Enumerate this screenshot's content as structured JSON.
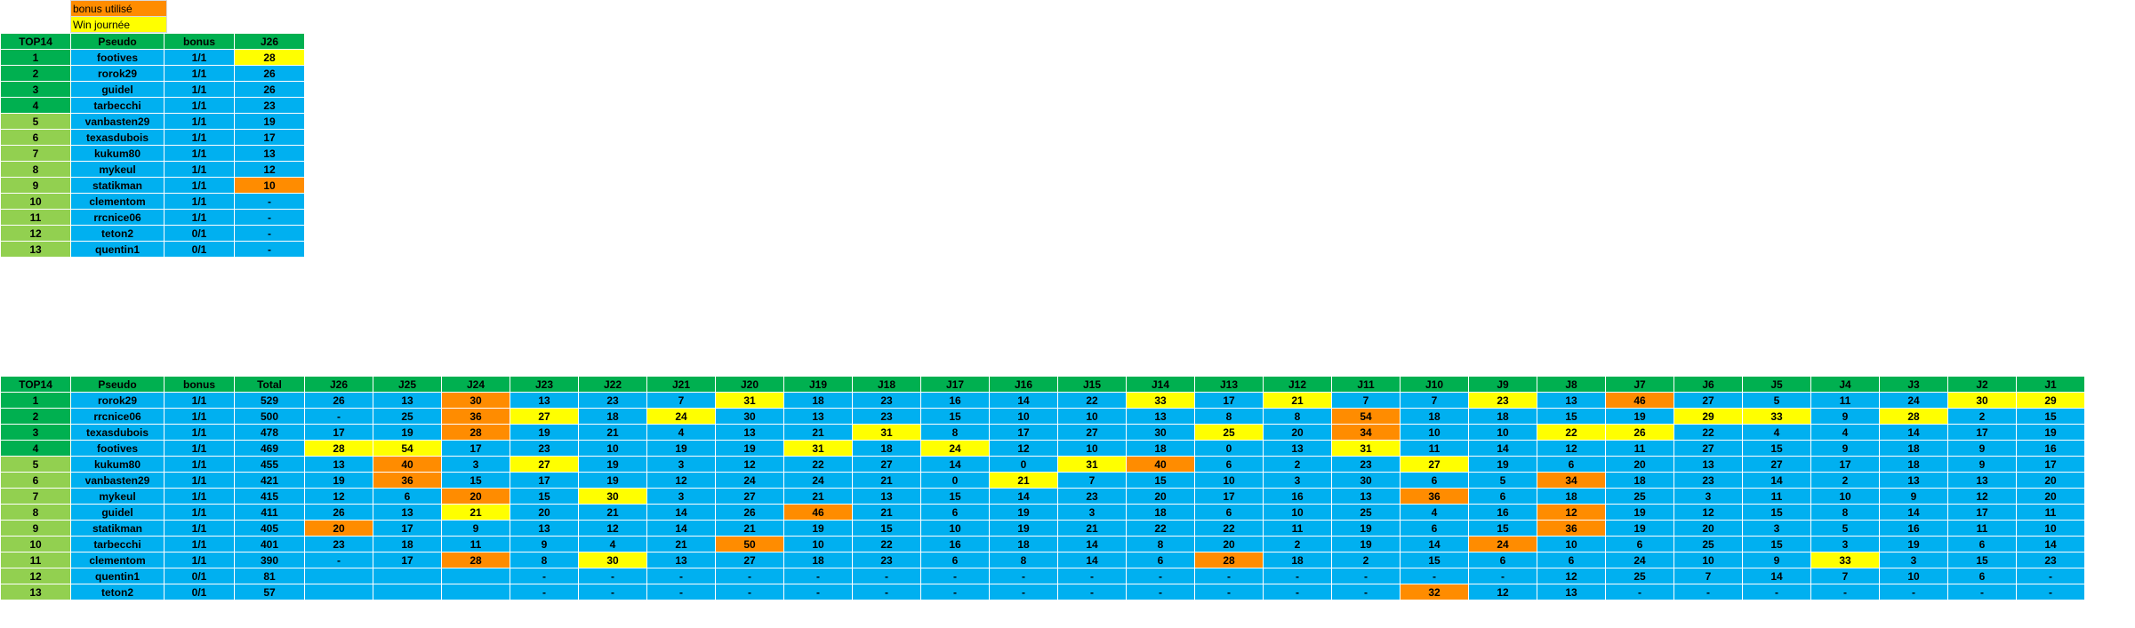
{
  "legend": [
    {
      "label": "bonus utilisé",
      "color": "#ff8c00"
    },
    {
      "label": "Win journée",
      "color": "#ffff00"
    }
  ],
  "colors": {
    "header": "#00b050",
    "rank_top": "#00b050",
    "rank_low": "#92d050",
    "cell": "#00b0f0",
    "bonus": "#ff8c00",
    "win": "#ffff00"
  },
  "small_table": {
    "headers": [
      "TOP14",
      "Pseudo",
      "bonus",
      "J26"
    ],
    "rows": [
      {
        "rank": "1",
        "pseudo": "footives",
        "bonus": "1/1",
        "j26": "28",
        "mark": "w"
      },
      {
        "rank": "2",
        "pseudo": "rorok29",
        "bonus": "1/1",
        "j26": "26",
        "mark": ""
      },
      {
        "rank": "3",
        "pseudo": "guidel",
        "bonus": "1/1",
        "j26": "26",
        "mark": ""
      },
      {
        "rank": "4",
        "pseudo": "tarbecchi",
        "bonus": "1/1",
        "j26": "23",
        "mark": ""
      },
      {
        "rank": "5",
        "pseudo": "vanbasten29",
        "bonus": "1/1",
        "j26": "19",
        "mark": ""
      },
      {
        "rank": "6",
        "pseudo": "texasdubois",
        "bonus": "1/1",
        "j26": "17",
        "mark": ""
      },
      {
        "rank": "7",
        "pseudo": "kukum80",
        "bonus": "1/1",
        "j26": "13",
        "mark": ""
      },
      {
        "rank": "8",
        "pseudo": "mykeul",
        "bonus": "1/1",
        "j26": "12",
        "mark": ""
      },
      {
        "rank": "9",
        "pseudo": "statikman",
        "bonus": "1/1",
        "j26": "10",
        "mark": "b"
      },
      {
        "rank": "10",
        "pseudo": "clementom",
        "bonus": "1/1",
        "j26": "-",
        "mark": ""
      },
      {
        "rank": "11",
        "pseudo": "rrcnice06",
        "bonus": "1/1",
        "j26": "-",
        "mark": ""
      },
      {
        "rank": "12",
        "pseudo": "teton2",
        "bonus": "0/1",
        "j26": "-",
        "mark": ""
      },
      {
        "rank": "13",
        "pseudo": "quentin1",
        "bonus": "0/1",
        "j26": "-",
        "mark": ""
      }
    ]
  },
  "big_table": {
    "headers": [
      "TOP14",
      "Pseudo",
      "bonus",
      "Total",
      "J26",
      "J25",
      "J24",
      "J23",
      "J22",
      "J21",
      "J20",
      "J19",
      "J18",
      "J17",
      "J16",
      "J15",
      "J14",
      "J13",
      "J12",
      "J11",
      "J10",
      "J9",
      "J8",
      "J7",
      "J6",
      "J5",
      "J4",
      "J3",
      "J2",
      "J1"
    ],
    "rows": [
      {
        "rank": "1",
        "pseudo": "rorok29",
        "bonus": "1/1",
        "total": "529",
        "scores": [
          "26",
          "13",
          "30",
          "13",
          "23",
          "7",
          "31",
          "18",
          "23",
          "16",
          "14",
          "22",
          "33",
          "17",
          "21",
          "7",
          "7",
          "23",
          "13",
          "46",
          "27",
          "5",
          "11",
          "24",
          "30",
          "29"
        ],
        "marks": [
          "",
          "",
          "b",
          "",
          "",
          "",
          "w",
          "",
          "",
          "",
          "",
          "",
          "w",
          "",
          "w",
          "",
          "",
          "w",
          "",
          "b",
          "",
          "",
          "",
          "",
          "w",
          "w"
        ]
      },
      {
        "rank": "2",
        "pseudo": "rrcnice06",
        "bonus": "1/1",
        "total": "500",
        "scores": [
          "-",
          "25",
          "36",
          "27",
          "18",
          "24",
          "30",
          "13",
          "23",
          "15",
          "10",
          "10",
          "13",
          "8",
          "8",
          "54",
          "18",
          "18",
          "15",
          "19",
          "29",
          "33",
          "9",
          "28",
          "2",
          "15"
        ],
        "marks": [
          "",
          "",
          "b",
          "w",
          "",
          "w",
          "",
          "",
          "",
          "",
          "",
          "",
          "",
          "",
          "",
          "b",
          "",
          "",
          "",
          "",
          "w",
          "w",
          "",
          "w",
          "",
          ""
        ]
      },
      {
        "rank": "3",
        "pseudo": "texasdubois",
        "bonus": "1/1",
        "total": "478",
        "scores": [
          "17",
          "19",
          "28",
          "19",
          "21",
          "4",
          "13",
          "21",
          "31",
          "8",
          "17",
          "27",
          "30",
          "25",
          "20",
          "34",
          "10",
          "10",
          "22",
          "26",
          "22",
          "4",
          "4",
          "14",
          "17",
          "19"
        ],
        "marks": [
          "",
          "",
          "b",
          "",
          "",
          "",
          "",
          "",
          "w",
          "",
          "",
          "",
          "",
          "w",
          "",
          "b",
          "",
          "",
          "w",
          "w",
          "",
          "",
          "",
          "",
          "",
          ""
        ]
      },
      {
        "rank": "4",
        "pseudo": "footives",
        "bonus": "1/1",
        "total": "469",
        "scores": [
          "28",
          "54",
          "17",
          "23",
          "10",
          "19",
          "19",
          "31",
          "18",
          "24",
          "12",
          "10",
          "18",
          "0",
          "13",
          "31",
          "11",
          "14",
          "12",
          "11",
          "27",
          "15",
          "9",
          "18",
          "9",
          "16"
        ],
        "marks": [
          "w",
          "w",
          "",
          "",
          "",
          "",
          "",
          "w",
          "",
          "w",
          "",
          "",
          "",
          "",
          "",
          "w",
          "",
          "",
          "",
          "",
          "",
          "",
          "",
          "",
          "",
          ""
        ]
      },
      {
        "rank": "5",
        "pseudo": "kukum80",
        "bonus": "1/1",
        "total": "455",
        "scores": [
          "13",
          "40",
          "3",
          "27",
          "19",
          "3",
          "12",
          "22",
          "27",
          "14",
          "0",
          "31",
          "40",
          "6",
          "2",
          "23",
          "27",
          "19",
          "6",
          "20",
          "13",
          "27",
          "17",
          "18",
          "9",
          "17"
        ],
        "marks": [
          "",
          "b",
          "",
          "w",
          "",
          "",
          "",
          "",
          "",
          "",
          "",
          "w",
          "b",
          "",
          "",
          "",
          "w",
          "",
          "",
          "",
          "",
          "",
          "",
          "",
          "",
          ""
        ]
      },
      {
        "rank": "6",
        "pseudo": "vanbasten29",
        "bonus": "1/1",
        "total": "421",
        "scores": [
          "19",
          "36",
          "15",
          "17",
          "19",
          "12",
          "24",
          "24",
          "21",
          "0",
          "21",
          "7",
          "15",
          "10",
          "3",
          "30",
          "6",
          "5",
          "34",
          "18",
          "23",
          "14",
          "2",
          "13",
          "13",
          "20"
        ],
        "marks": [
          "",
          "b",
          "",
          "",
          "",
          "",
          "",
          "",
          "",
          "",
          "w",
          "",
          "",
          "",
          "",
          "",
          "",
          "",
          "b",
          "",
          "",
          "",
          "",
          "",
          "",
          ""
        ]
      },
      {
        "rank": "7",
        "pseudo": "mykeul",
        "bonus": "1/1",
        "total": "415",
        "scores": [
          "12",
          "6",
          "20",
          "15",
          "30",
          "3",
          "27",
          "21",
          "13",
          "15",
          "14",
          "23",
          "20",
          "17",
          "16",
          "13",
          "36",
          "6",
          "18",
          "25",
          "3",
          "11",
          "10",
          "9",
          "12",
          "20"
        ],
        "marks": [
          "",
          "",
          "b",
          "",
          "w",
          "",
          "",
          "",
          "",
          "",
          "",
          "",
          "",
          "",
          "",
          "",
          "b",
          "",
          "",
          "",
          "",
          "",
          "",
          "",
          "",
          ""
        ]
      },
      {
        "rank": "8",
        "pseudo": "guidel",
        "bonus": "1/1",
        "total": "411",
        "scores": [
          "26",
          "13",
          "21",
          "20",
          "21",
          "14",
          "26",
          "46",
          "21",
          "6",
          "19",
          "3",
          "18",
          "6",
          "10",
          "25",
          "4",
          "16",
          "12",
          "19",
          "12",
          "15",
          "8",
          "14",
          "17",
          "11"
        ],
        "marks": [
          "",
          "",
          "w",
          "",
          "",
          "",
          "",
          "b",
          "",
          "",
          "",
          "",
          "",
          "",
          "",
          "",
          "",
          "",
          "b",
          "",
          "",
          "",
          "",
          "",
          "",
          ""
        ]
      },
      {
        "rank": "9",
        "pseudo": "statikman",
        "bonus": "1/1",
        "total": "405",
        "scores": [
          "20",
          "17",
          "9",
          "13",
          "12",
          "14",
          "21",
          "19",
          "15",
          "10",
          "19",
          "21",
          "22",
          "22",
          "11",
          "19",
          "6",
          "15",
          "36",
          "19",
          "20",
          "3",
          "5",
          "16",
          "11",
          "10"
        ],
        "marks": [
          "b",
          "",
          "",
          "",
          "",
          "",
          "",
          "",
          "",
          "",
          "",
          "",
          "",
          "",
          "",
          "",
          "",
          "",
          "b",
          "",
          "",
          "",
          "",
          "",
          "",
          ""
        ]
      },
      {
        "rank": "10",
        "pseudo": "tarbecchi",
        "bonus": "1/1",
        "total": "401",
        "scores": [
          "23",
          "18",
          "11",
          "9",
          "4",
          "21",
          "50",
          "10",
          "22",
          "16",
          "18",
          "14",
          "8",
          "20",
          "2",
          "19",
          "14",
          "24",
          "10",
          "6",
          "25",
          "15",
          "3",
          "19",
          "6",
          "14"
        ],
        "marks": [
          "",
          "",
          "",
          "",
          "",
          "",
          "b",
          "",
          "",
          "",
          "",
          "",
          "",
          "",
          "",
          "",
          "",
          "b",
          "",
          "",
          "",
          "",
          "",
          "",
          "",
          ""
        ]
      },
      {
        "rank": "11",
        "pseudo": "clementom",
        "bonus": "1/1",
        "total": "390",
        "scores": [
          "-",
          "17",
          "28",
          "8",
          "30",
          "13",
          "27",
          "18",
          "23",
          "6",
          "8",
          "14",
          "6",
          "28",
          "18",
          "2",
          "15",
          "6",
          "6",
          "24",
          "10",
          "9",
          "33",
          "3",
          "15",
          "23"
        ],
        "marks": [
          "",
          "",
          "b",
          "",
          "w",
          "",
          "",
          "",
          "",
          "",
          "",
          "",
          "",
          "b",
          "",
          "",
          "",
          "",
          "",
          "",
          "",
          "",
          "w",
          "",
          "",
          ""
        ]
      },
      {
        "rank": "12",
        "pseudo": "quentin1",
        "bonus": "0/1",
        "total": "81",
        "scores": [
          "",
          "",
          "",
          "-",
          "-",
          "-",
          "-",
          "-",
          "-",
          "-",
          "-",
          "-",
          "-",
          "-",
          "-",
          "-",
          "-",
          "-",
          "12",
          "25",
          "7",
          "14",
          "7",
          "10",
          "6",
          "-"
        ],
        "marks": [
          "",
          "",
          "",
          "",
          "",
          "",
          "",
          "",
          "",
          "",
          "",
          "",
          "",
          "",
          "",
          "",
          "",
          "",
          "",
          "",
          "",
          "",
          "",
          "",
          "",
          ""
        ]
      },
      {
        "rank": "13",
        "pseudo": "teton2",
        "bonus": "0/1",
        "total": "57",
        "scores": [
          "",
          "",
          "",
          "-",
          "-",
          "-",
          "-",
          "-",
          "-",
          "-",
          "-",
          "-",
          "-",
          "-",
          "-",
          "-",
          "32",
          "12",
          "13",
          "-",
          "-",
          "-",
          "-",
          "-",
          "-",
          "-"
        ],
        "marks": [
          "",
          "",
          "",
          "",
          "",
          "",
          "",
          "",
          "",
          "",
          "",
          "",
          "",
          "",
          "",
          "",
          "b",
          "",
          "",
          "",
          "",
          "",
          "",
          "",
          "",
          ""
        ]
      }
    ]
  }
}
